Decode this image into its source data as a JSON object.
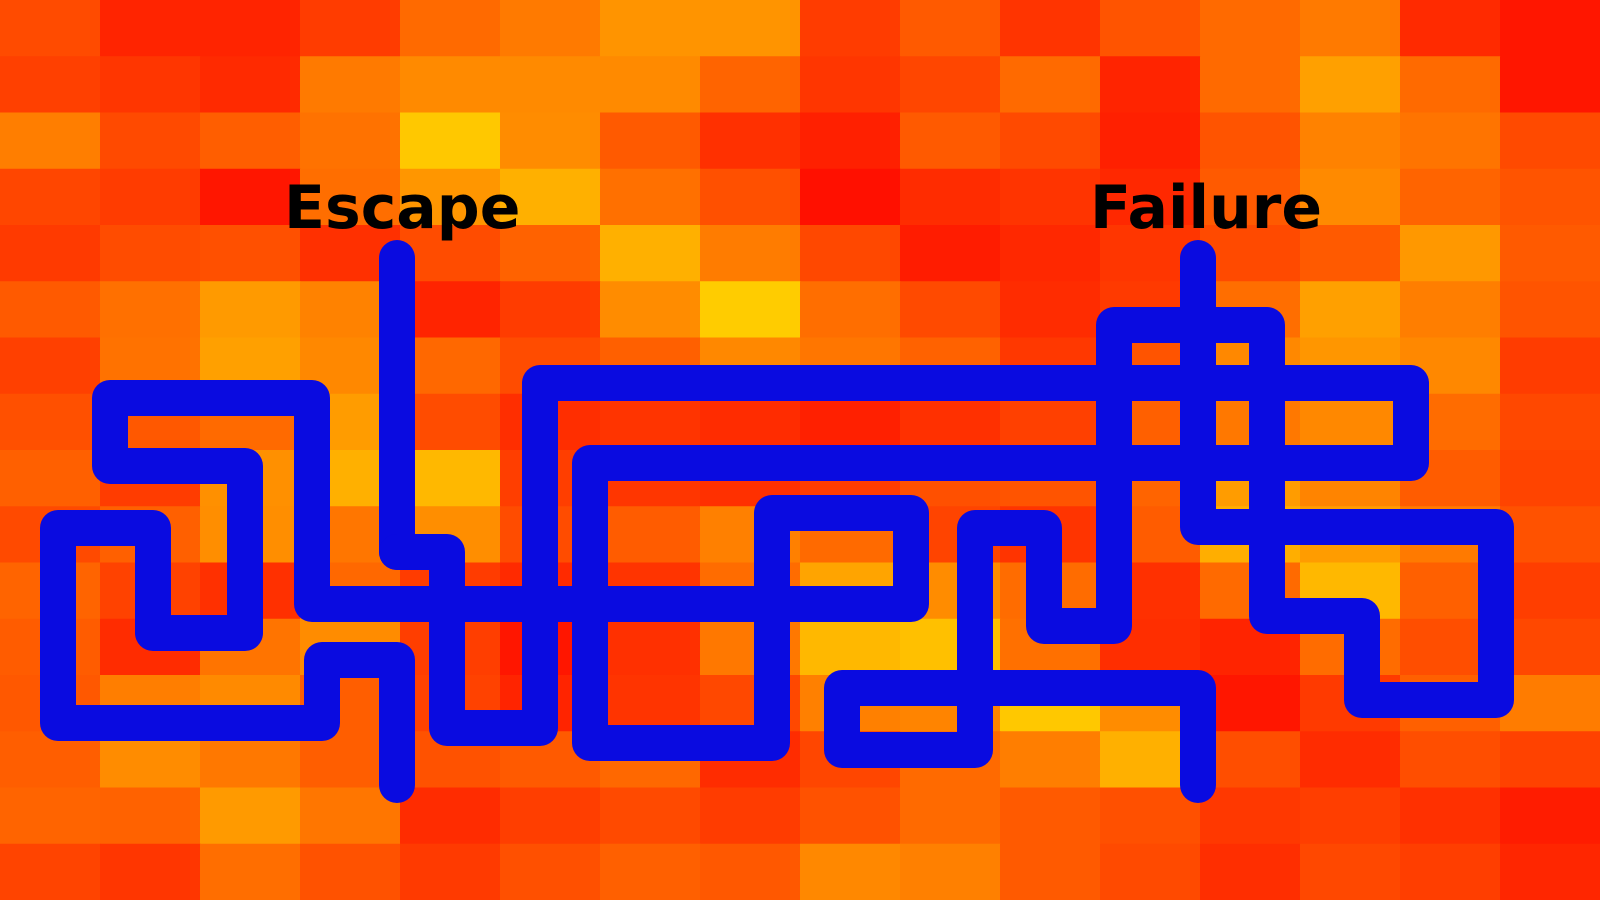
{
  "labels": {
    "escape": "Escape",
    "failure": "Failure"
  },
  "colors": {
    "path": "#0a0be0",
    "label": "#000000",
    "heat_low": "#ffcc00",
    "heat_high": "#ff1a00"
  },
  "heatmap": {
    "rows": 16,
    "cols": 16,
    "colors": [
      [
        "#ff4b00",
        "#ff2400",
        "#ff2400",
        "#ff3c00",
        "#ff6a00",
        "#ff7a00",
        "#ff9400",
        "#ff9400",
        "#ff3c00",
        "#ff5a00",
        "#ff3400",
        "#ff5400",
        "#ff6a00",
        "#ff7a00",
        "#ff2a00",
        "#ff1600"
      ],
      [
        "#ff4000",
        "#ff3600",
        "#ff2a00",
        "#ff7a00",
        "#ff8a00",
        "#ff8a00",
        "#ff8a00",
        "#ff6400",
        "#ff3600",
        "#ff4600",
        "#ff6a00",
        "#ff2400",
        "#ff6a00",
        "#ffa000",
        "#ff6a00",
        "#ff1600"
      ],
      [
        "#ff7e00",
        "#ff4a00",
        "#ff5e00",
        "#ff7200",
        "#ffc800",
        "#ff8c00",
        "#ff5a00",
        "#ff3000",
        "#ff2000",
        "#ff5a00",
        "#ff4a00",
        "#ff2000",
        "#ff5400",
        "#ff8200",
        "#ff7400",
        "#ff4a00"
      ],
      [
        "#ff4600",
        "#ff3c00",
        "#ff1600",
        "#ff6e00",
        "#ff9600",
        "#ffb000",
        "#ff7000",
        "#ff5000",
        "#ff1000",
        "#ff2c00",
        "#ff3400",
        "#ff2800",
        "#ff5a00",
        "#ff8a00",
        "#ff6400",
        "#ff5400"
      ],
      [
        "#ff3a00",
        "#ff4c00",
        "#ff5000",
        "#ff3000",
        "#ff4c00",
        "#ff6200",
        "#ffb000",
        "#ff7c00",
        "#ff4800",
        "#ff1c00",
        "#ff2800",
        "#ff3600",
        "#ff4a00",
        "#ff5a00",
        "#ff9800",
        "#ff5a00"
      ],
      [
        "#ff5a00",
        "#ff7000",
        "#ff9a00",
        "#ff8200",
        "#ff2400",
        "#ff3c00",
        "#ff8c00",
        "#ffcc00",
        "#ff6e00",
        "#ff4a00",
        "#ff2c00",
        "#ff3a00",
        "#ff6e00",
        "#ffa000",
        "#ff7e00",
        "#ff5400"
      ],
      [
        "#ff4000",
        "#ff7200",
        "#ffa000",
        "#ff8800",
        "#ff6800",
        "#ff4c00",
        "#ff6000",
        "#ff8800",
        "#ff7600",
        "#ff6200",
        "#ff3800",
        "#ff5400",
        "#ff8800",
        "#ff9600",
        "#ff8800",
        "#ff3c00"
      ],
      [
        "#ff5000",
        "#ff5800",
        "#ff6a00",
        "#ff9c00",
        "#ff4c00",
        "#ff2e00",
        "#ff3400",
        "#ff2c00",
        "#ff2000",
        "#ff3000",
        "#ff4000",
        "#ff6000",
        "#ff7800",
        "#ff8800",
        "#ff6c00",
        "#ff4800"
      ],
      [
        "#ff6000",
        "#ff3c00",
        "#ff9000",
        "#ffb000",
        "#ffb800",
        "#ff3e00",
        "#ff3600",
        "#ff3000",
        "#ff3c00",
        "#ff5000",
        "#ff5400",
        "#ff6400",
        "#ff9c00",
        "#ff8400",
        "#ff5c00",
        "#ff4400"
      ],
      [
        "#ff4a00",
        "#ff6000",
        "#ff8e00",
        "#ff7600",
        "#ff8e00",
        "#ff4c00",
        "#ff5c00",
        "#ff8000",
        "#ff6a00",
        "#ff4400",
        "#ff3400",
        "#ff5c00",
        "#ffae00",
        "#ff9c00",
        "#ff7a00",
        "#ff5200"
      ],
      [
        "#ff6400",
        "#ff4200",
        "#ff3000",
        "#ff6800",
        "#ff3c00",
        "#ff2a00",
        "#ff3400",
        "#ff6c00",
        "#ffa400",
        "#ff8c00",
        "#ff6c00",
        "#ff3000",
        "#ff6a00",
        "#ffb800",
        "#ff6000",
        "#ff3e00"
      ],
      [
        "#ff5c00",
        "#ff2c00",
        "#ff7400",
        "#ff8c00",
        "#ff3e00",
        "#ff1600",
        "#ff3000",
        "#ff7800",
        "#ffb800",
        "#ffc000",
        "#ff7000",
        "#ff2e00",
        "#ff2400",
        "#ff6c00",
        "#ff4e00",
        "#ff4800"
      ],
      [
        "#ff5800",
        "#ff7e00",
        "#ff8a00",
        "#ff5e00",
        "#ff4200",
        "#ff2400",
        "#ff3400",
        "#ff4800",
        "#ff8000",
        "#ff8400",
        "#ffc800",
        "#ff8c00",
        "#ff1600",
        "#ff3a00",
        "#ff6000",
        "#ff7c00"
      ],
      [
        "#ff5e00",
        "#ff8c00",
        "#ff7800",
        "#ff5e00",
        "#ff5200",
        "#ff5a00",
        "#ff6800",
        "#ff2c00",
        "#ff4600",
        "#ff6a00",
        "#ff7e00",
        "#ffb000",
        "#ff4e00",
        "#ff2c00",
        "#ff4e00",
        "#ff4200"
      ],
      [
        "#ff6400",
        "#ff6200",
        "#ff9a00",
        "#ff7600",
        "#ff2c00",
        "#ff3e00",
        "#ff4a00",
        "#ff3c00",
        "#ff5200",
        "#ff6a00",
        "#ff5a00",
        "#ff5000",
        "#ff3800",
        "#ff3e00",
        "#ff3000",
        "#ff1c00"
      ],
      [
        "#ff4400",
        "#ff3600",
        "#ff6e00",
        "#ff5200",
        "#ff3a00",
        "#ff5000",
        "#ff6000",
        "#ff5800",
        "#ff8800",
        "#ff8000",
        "#ff5a00",
        "#ff4a00",
        "#ff2e00",
        "#ff4800",
        "#ff3e00",
        "#ff2600"
      ]
    ]
  }
}
